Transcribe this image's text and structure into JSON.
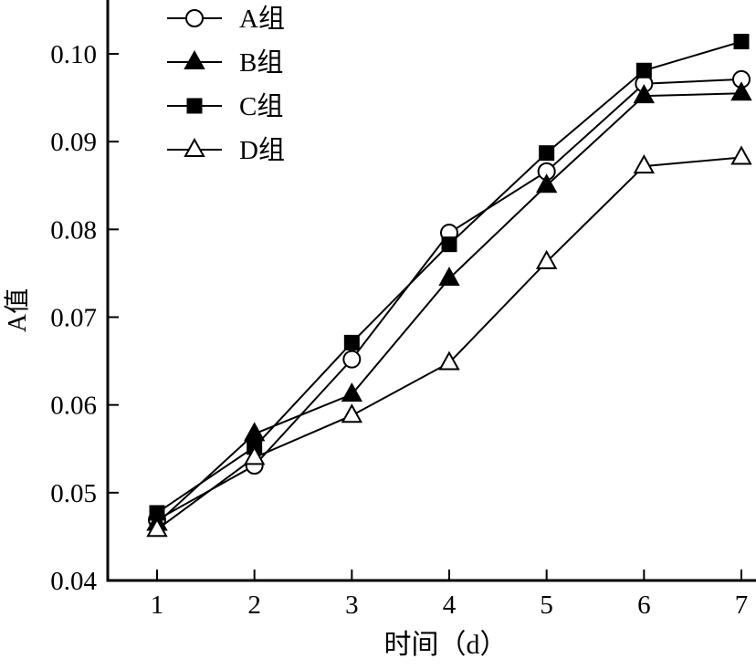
{
  "chart_data": {
    "type": "line",
    "title": "",
    "xlabel": "时间（d）",
    "ylabel": "A值",
    "x": [
      1,
      2,
      3,
      4,
      5,
      6,
      7
    ],
    "xticks": [
      "1",
      "2",
      "3",
      "4",
      "5",
      "6",
      "7"
    ],
    "yticks": [
      "0.04",
      "0.05",
      "0.06",
      "0.07",
      "0.08",
      "0.09",
      "0.10"
    ],
    "ytick_values": [
      0.04,
      0.05,
      0.06,
      0.07,
      0.08,
      0.09,
      0.1
    ],
    "xlim": [
      0.5,
      7.15
    ],
    "ylim": [
      0.04,
      0.1061
    ],
    "grid": false,
    "legend_position": "top-left",
    "series": [
      {
        "name": "A组",
        "marker": "circle-open",
        "values": [
          0.0469,
          0.0531,
          0.0652,
          0.0796,
          0.0866,
          0.0966,
          0.0971
        ]
      },
      {
        "name": "B组",
        "marker": "triangle-filled",
        "values": [
          0.0465,
          0.0567,
          0.0612,
          0.0744,
          0.085,
          0.0952,
          0.0955
        ]
      },
      {
        "name": "C组",
        "marker": "square-filled",
        "values": [
          0.0477,
          0.0552,
          0.0671,
          0.0783,
          0.0887,
          0.0981,
          0.1014
        ]
      },
      {
        "name": "D组",
        "marker": "triangle-open",
        "values": [
          0.0458,
          0.054,
          0.0588,
          0.0648,
          0.0763,
          0.0872,
          0.0882
        ]
      }
    ]
  }
}
